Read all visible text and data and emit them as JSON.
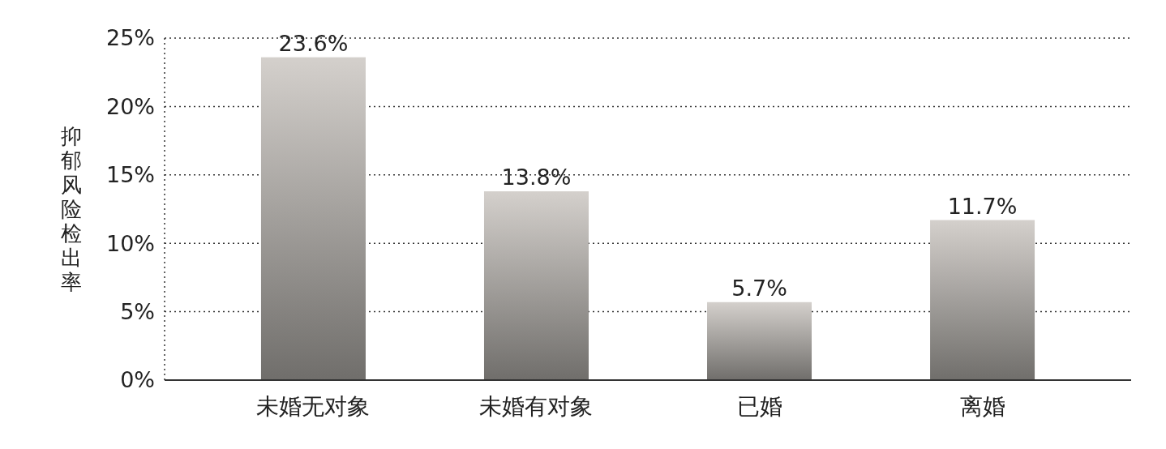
{
  "chart_data": {
    "type": "bar",
    "ylabel": "抑郁风险检出率",
    "categories": [
      "未婚无对象",
      "未婚有对象",
      "已婚",
      "离婚"
    ],
    "values": [
      23.6,
      13.8,
      5.7,
      11.7
    ],
    "color": "#9a9794",
    "ylim": [
      0,
      25
    ],
    "yticks": [
      {
        "value": 0,
        "label": "0%"
      },
      {
        "value": 5,
        "label": "5%"
      },
      {
        "value": 10,
        "label": "10%"
      },
      {
        "value": 15,
        "label": "15%"
      },
      {
        "value": 20,
        "label": "20%"
      },
      {
        "value": 25,
        "label": "25%"
      }
    ],
    "grid": "y",
    "data_labels": true,
    "value_labels": [
      "23.6%",
      "13.8%",
      "5.7%",
      "11.7%"
    ]
  }
}
